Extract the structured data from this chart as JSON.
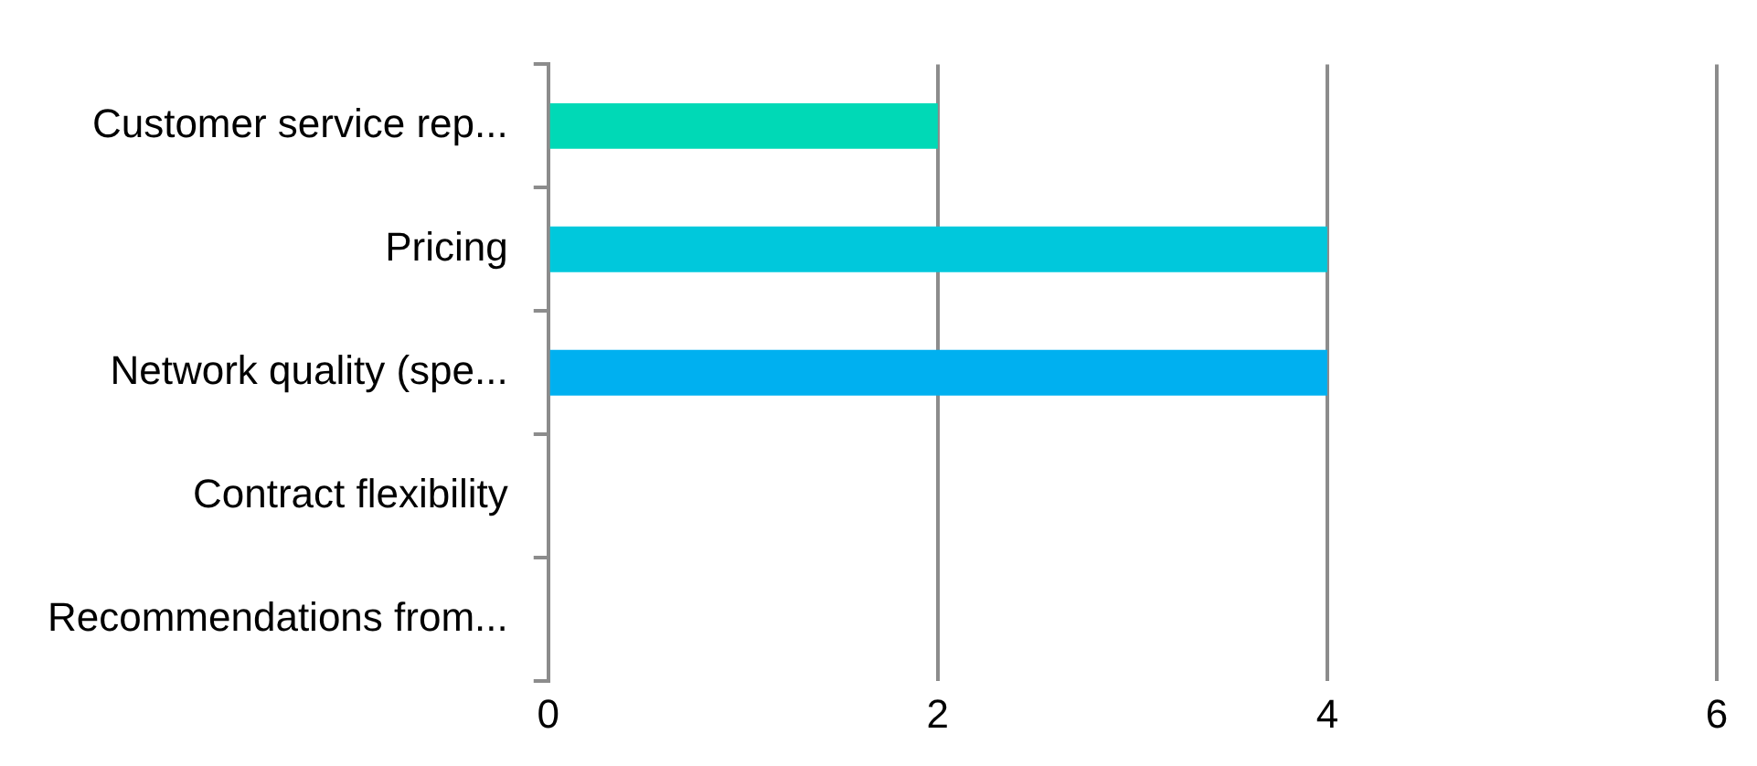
{
  "chart_data": {
    "type": "bar",
    "orientation": "horizontal",
    "categories": [
      "Customer service rep...",
      "Pricing",
      "Network quality (spe...",
      "Contract flexibility",
      "Recommendations from..."
    ],
    "values": [
      2,
      4,
      4,
      0,
      0
    ],
    "colors": [
      "#00d9b6",
      "#00c8dc",
      "#00b0f0",
      "#0098e8",
      "#0080e0"
    ],
    "xlim": [
      0,
      6
    ],
    "xticks": [
      0,
      2,
      4,
      6
    ],
    "grid": "x"
  }
}
